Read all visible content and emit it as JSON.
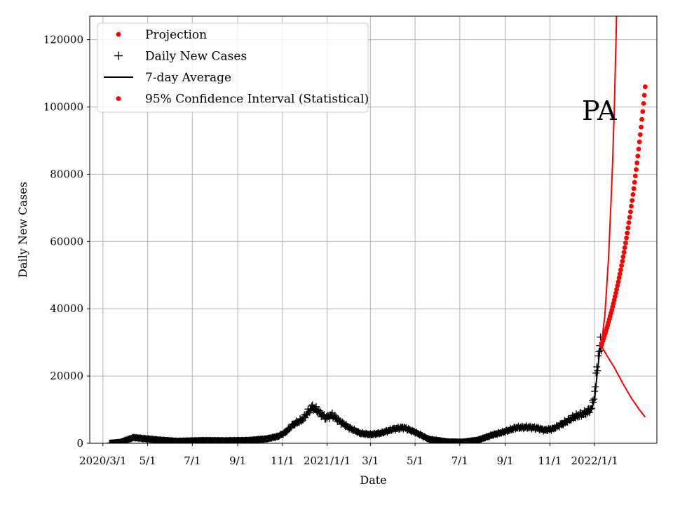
{
  "chart_data": {
    "type": "line",
    "title": "",
    "xlabel": "Date",
    "ylabel": "Daily New Cases",
    "annotation": "PA",
    "grid": true,
    "legend_position": "top-left",
    "xlim": [
      "2020-02-12",
      "2022-03-27"
    ],
    "ylim": [
      0,
      127000
    ],
    "x_ticks": [
      {
        "date": "2020-03-01",
        "label": "2020/3/1"
      },
      {
        "date": "2020-05-01",
        "label": "5/1"
      },
      {
        "date": "2020-07-01",
        "label": "7/1"
      },
      {
        "date": "2020-09-01",
        "label": "9/1"
      },
      {
        "date": "2020-11-01",
        "label": "11/1"
      },
      {
        "date": "2021-01-01",
        "label": "2021/1/1"
      },
      {
        "date": "2021-03-01",
        "label": "3/1"
      },
      {
        "date": "2021-05-01",
        "label": "5/1"
      },
      {
        "date": "2021-07-01",
        "label": "7/1"
      },
      {
        "date": "2021-09-01",
        "label": "9/1"
      },
      {
        "date": "2021-11-01",
        "label": "11/1"
      },
      {
        "date": "2022-01-01",
        "label": "2022/1/1"
      }
    ],
    "y_ticks": [
      0,
      20000,
      40000,
      60000,
      80000,
      100000,
      120000
    ],
    "y_tick_labels": [
      "0",
      "20000",
      "40000",
      "60000",
      "80000",
      "100000",
      "120000"
    ],
    "legend": [
      {
        "label": "Projection",
        "marker": "dot",
        "color": "#ff0000"
      },
      {
        "label": "Daily New Cases",
        "marker": "plus",
        "color": "#000000"
      },
      {
        "label": "7-day Average",
        "marker": "line",
        "color": "#000000"
      },
      {
        "label": "95% Confidence Interval (Statistical)",
        "marker": "dot",
        "color": "#ff0000"
      }
    ],
    "series": [
      {
        "name": "Daily New Cases",
        "style": "plus",
        "color": "#000000",
        "anchors": [
          [
            "2020-03-10",
            0
          ],
          [
            "2020-03-25",
            300
          ],
          [
            "2020-04-05",
            1200
          ],
          [
            "2020-04-12",
            1700
          ],
          [
            "2020-04-25",
            1400
          ],
          [
            "2020-05-15",
            1000
          ],
          [
            "2020-06-10",
            600
          ],
          [
            "2020-07-15",
            800
          ],
          [
            "2020-08-15",
            750
          ],
          [
            "2020-09-15",
            850
          ],
          [
            "2020-10-10",
            1300
          ],
          [
            "2020-10-25",
            2000
          ],
          [
            "2020-11-05",
            3200
          ],
          [
            "2020-11-15",
            5500
          ],
          [
            "2020-11-28",
            7000
          ],
          [
            "2020-12-05",
            9000
          ],
          [
            "2020-12-12",
            10800
          ],
          [
            "2020-12-20",
            9500
          ],
          [
            "2020-12-30",
            7500
          ],
          [
            "2021-01-08",
            8500
          ],
          [
            "2021-01-18",
            6500
          ],
          [
            "2021-02-01",
            4500
          ],
          [
            "2021-02-15",
            3000
          ],
          [
            "2021-03-01",
            2600
          ],
          [
            "2021-03-15",
            3000
          ],
          [
            "2021-04-01",
            4200
          ],
          [
            "2021-04-15",
            4700
          ],
          [
            "2021-05-01",
            3300
          ],
          [
            "2021-05-20",
            1200
          ],
          [
            "2021-06-15",
            400
          ],
          [
            "2021-07-05",
            350
          ],
          [
            "2021-07-25",
            900
          ],
          [
            "2021-08-15",
            2500
          ],
          [
            "2021-09-01",
            3500
          ],
          [
            "2021-09-15",
            4600
          ],
          [
            "2021-10-01",
            4800
          ],
          [
            "2021-10-15",
            4500
          ],
          [
            "2021-10-25",
            3900
          ],
          [
            "2021-11-05",
            4300
          ],
          [
            "2021-11-20",
            6000
          ],
          [
            "2021-12-01",
            7500
          ],
          [
            "2021-12-10",
            8300
          ],
          [
            "2021-12-20",
            9000
          ],
          [
            "2021-12-28",
            10500
          ],
          [
            "2022-01-01",
            15000
          ],
          [
            "2022-01-04",
            22000
          ],
          [
            "2022-01-08",
            29000
          ],
          [
            "2022-01-10",
            29500
          ]
        ]
      },
      {
        "name": "7-day Average",
        "style": "line",
        "color": "#000000",
        "anchors": [
          [
            "2020-03-10",
            0
          ],
          [
            "2020-03-25",
            300
          ],
          [
            "2020-04-05",
            1100
          ],
          [
            "2020-04-12",
            1550
          ],
          [
            "2020-04-25",
            1350
          ],
          [
            "2020-05-15",
            950
          ],
          [
            "2020-06-10",
            600
          ],
          [
            "2020-07-15",
            750
          ],
          [
            "2020-08-15",
            700
          ],
          [
            "2020-09-15",
            800
          ],
          [
            "2020-10-10",
            1250
          ],
          [
            "2020-10-25",
            1900
          ],
          [
            "2020-11-05",
            3000
          ],
          [
            "2020-11-15",
            5200
          ],
          [
            "2020-11-28",
            6800
          ],
          [
            "2020-12-05",
            8600
          ],
          [
            "2020-12-12",
            10200
          ],
          [
            "2020-12-20",
            9300
          ],
          [
            "2020-12-30",
            7600
          ],
          [
            "2021-01-08",
            8100
          ],
          [
            "2021-01-18",
            6400
          ],
          [
            "2021-02-01",
            4400
          ],
          [
            "2021-02-15",
            3000
          ],
          [
            "2021-03-01",
            2600
          ],
          [
            "2021-03-15",
            2900
          ],
          [
            "2021-04-01",
            4000
          ],
          [
            "2021-04-15",
            4500
          ],
          [
            "2021-05-01",
            3300
          ],
          [
            "2021-05-20",
            1200
          ],
          [
            "2021-06-15",
            400
          ],
          [
            "2021-07-05",
            350
          ],
          [
            "2021-07-25",
            850
          ],
          [
            "2021-08-15",
            2400
          ],
          [
            "2021-09-01",
            3400
          ],
          [
            "2021-09-15",
            4400
          ],
          [
            "2021-10-01",
            4700
          ],
          [
            "2021-10-15",
            4400
          ],
          [
            "2021-10-25",
            3900
          ],
          [
            "2021-11-05",
            4200
          ],
          [
            "2021-11-20",
            5800
          ],
          [
            "2021-12-01",
            7200
          ],
          [
            "2021-12-10",
            8000
          ],
          [
            "2021-12-20",
            8800
          ],
          [
            "2021-12-28",
            10000
          ],
          [
            "2022-01-01",
            13000
          ],
          [
            "2022-01-04",
            19500
          ],
          [
            "2022-01-08",
            27500
          ],
          [
            "2022-01-10",
            29000
          ]
        ]
      },
      {
        "name": "Projection",
        "style": "dots",
        "color": "#ff0000",
        "start": [
          "2022-01-10",
          29000
        ],
        "end": [
          "2022-03-11",
          106000
        ],
        "points": 55
      },
      {
        "name": "95% Confidence Interval (Statistical)",
        "style": "line",
        "color": "#ff0000",
        "upper": [
          [
            "2022-01-10",
            29000
          ],
          [
            "2022-01-15",
            38000
          ],
          [
            "2022-01-20",
            55000
          ],
          [
            "2022-01-25",
            80000
          ],
          [
            "2022-01-28",
            100000
          ],
          [
            "2022-01-31",
            127000
          ]
        ],
        "lower": [
          [
            "2022-01-10",
            29000
          ],
          [
            "2022-01-18",
            26000
          ],
          [
            "2022-01-28",
            22500
          ],
          [
            "2022-02-08",
            18000
          ],
          [
            "2022-02-20",
            13500
          ],
          [
            "2022-03-03",
            10000
          ],
          [
            "2022-03-11",
            7800
          ]
        ]
      }
    ]
  }
}
